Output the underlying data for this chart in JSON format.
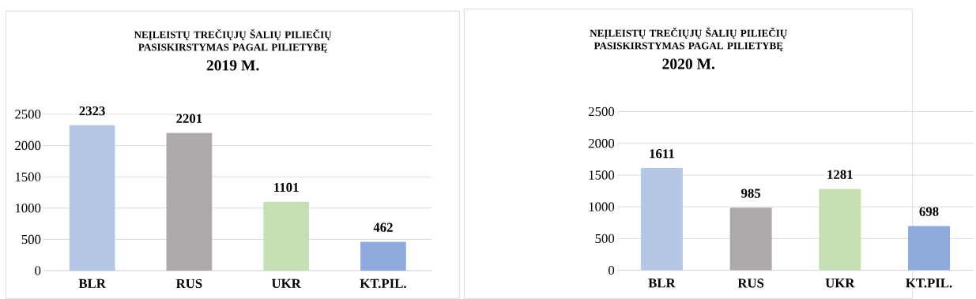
{
  "chart_data": [
    {
      "type": "bar",
      "title": "NEĮLEISTŲ TREČIŲJŲ ŠALIŲ PILIEČIŲ PASISKIRSTYMAS PAGAL PILIETYBĘ",
      "subtitle": "2019 M.",
      "categories": [
        "BLR",
        "RUS",
        "UKR",
        "KT.PIL."
      ],
      "values": [
        2323,
        2201,
        1101,
        462
      ],
      "colors": [
        "#b4c7e7",
        "#aeaaaa",
        "#c5e0b4",
        "#8faadc"
      ],
      "ylim": [
        0,
        2500
      ],
      "yticks": [
        0,
        500,
        1000,
        1500,
        2000,
        2500
      ],
      "grid": "y",
      "data_labels": true
    },
    {
      "type": "bar",
      "title": "NEĮLEISTŲ TREČIŲJŲ ŠALIŲ PILIEČIŲ PASISKIRSTYMAS PAGAL PILIETYBĘ",
      "subtitle": "2020 M.",
      "categories": [
        "BLR",
        "RUS",
        "UKR",
        "KT.PIL."
      ],
      "values": [
        1611,
        985,
        1281,
        698
      ],
      "colors": [
        "#b4c7e7",
        "#aeaaaa",
        "#c5e0b4",
        "#8faadc"
      ],
      "ylim": [
        0,
        2500
      ],
      "yticks": [
        0,
        500,
        1000,
        1500,
        2000,
        2500
      ],
      "grid": "y",
      "data_labels": true
    }
  ]
}
